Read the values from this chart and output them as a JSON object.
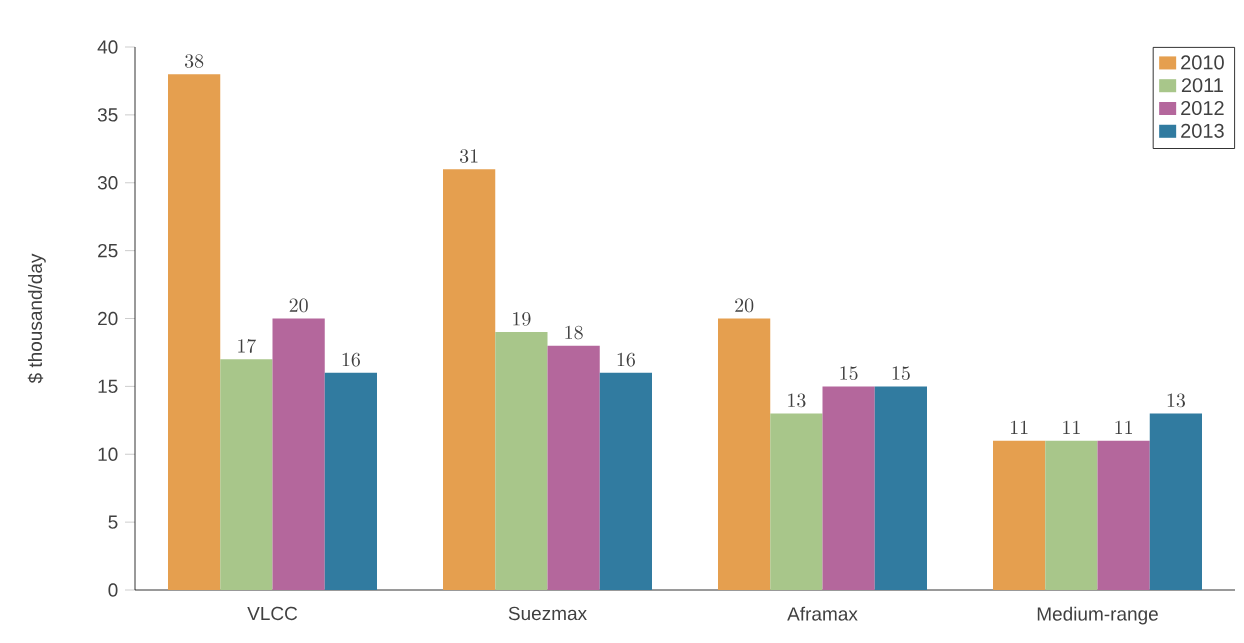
{
  "chart_data": {
    "type": "bar",
    "ylabel": "$ thousand/day",
    "categories": [
      "VLCC",
      "Suezmax",
      "Aframax",
      "Medium-range"
    ],
    "series": [
      {
        "name": "2010",
        "color": "#e59f4f",
        "values": [
          38,
          31,
          20,
          11
        ]
      },
      {
        "name": "2011",
        "color": "#a8c68a",
        "values": [
          17,
          19,
          13,
          11
        ]
      },
      {
        "name": "2012",
        "color": "#b4679c",
        "values": [
          20,
          18,
          15,
          11
        ]
      },
      {
        "name": "2013",
        "color": "#317ba0",
        "values": [
          16,
          16,
          15,
          13
        ]
      }
    ],
    "ylim": [
      0,
      40
    ],
    "yticks": [
      0,
      5,
      10,
      15,
      20,
      25,
      30,
      35,
      40
    ],
    "data_labels": true,
    "legend": "top right",
    "grid": false
  }
}
